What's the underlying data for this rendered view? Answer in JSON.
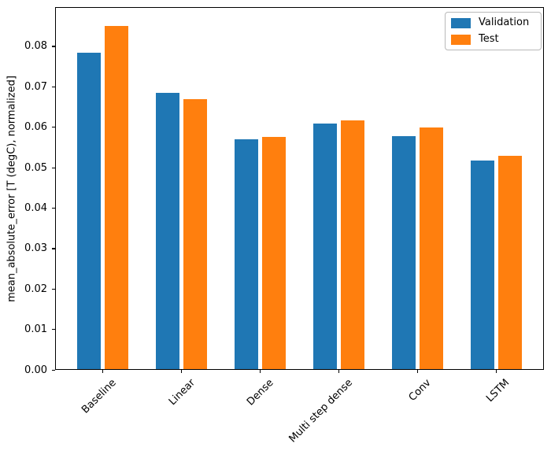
{
  "figure": {
    "background": "#ffffff",
    "spine_color": "#000000",
    "text_color": "#000000"
  },
  "chart_data": {
    "type": "bar",
    "title": "",
    "xlabel": "",
    "ylabel": "mean_absolute_error [T (degC), normalized]",
    "categories": [
      "Baseline",
      "Linear",
      "Dense",
      "Multi step dense",
      "Conv",
      "LSTM"
    ],
    "series": [
      {
        "name": "Validation",
        "color": "#1f77b4",
        "values": [
          0.0785,
          0.0686,
          0.057,
          0.061,
          0.0579,
          0.0518
        ]
      },
      {
        "name": "Test",
        "color": "#ff7f0e",
        "values": [
          0.0853,
          0.067,
          0.0577,
          0.0617,
          0.0601,
          0.053
        ]
      }
    ],
    "ylim": [
      0,
      0.0897
    ],
    "yticks": [
      0.0,
      0.01,
      0.02,
      0.03,
      0.04,
      0.05,
      0.06,
      0.07,
      0.08
    ],
    "ytick_labels": [
      "0.00",
      "0.01",
      "0.02",
      "0.03",
      "0.04",
      "0.05",
      "0.06",
      "0.07",
      "0.08"
    ],
    "xtick_rotation": 45,
    "grid": false,
    "legend_position": "upper right",
    "legend_entries": [
      "Validation",
      "Test"
    ]
  }
}
